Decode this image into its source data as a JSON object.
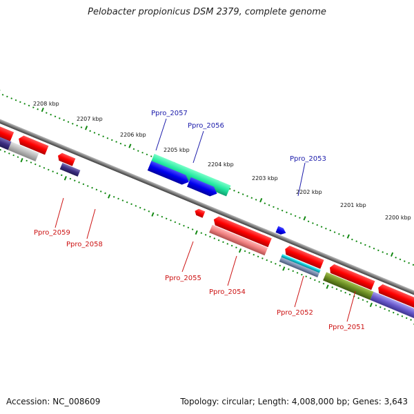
{
  "title": "Pelobacter propionicus DSM 2379, complete genome",
  "footer": {
    "accession": "Accession: NC_008609",
    "summary": "Topology: circular; Length: 4,008,000 bp; Genes: 3,643"
  },
  "colors": {
    "backbone": "#808080",
    "tick": "#118811",
    "forward_label": "#1a1aaa",
    "reverse_label": "#cc1111"
  },
  "scale_labels": [
    "2208 kbp",
    "2207 kbp",
    "2206 kbp",
    "2205 kbp",
    "2204 kbp",
    "2203 kbp",
    "2202 kbp",
    "2201 kbp",
    "2200 kbp"
  ],
  "gene_labels": [
    {
      "text": "Ppro_2057",
      "strand": "forward"
    },
    {
      "text": "Ppro_2056",
      "strand": "forward"
    },
    {
      "text": "Ppro_2053",
      "strand": "forward"
    },
    {
      "text": "Ppro_2059",
      "strand": "reverse"
    },
    {
      "text": "Ppro_2058",
      "strand": "reverse"
    },
    {
      "text": "Ppro_2055",
      "strand": "reverse"
    },
    {
      "text": "Ppro_2054",
      "strand": "reverse"
    },
    {
      "text": "Ppro_2052",
      "strand": "reverse"
    },
    {
      "text": "Ppro_2051",
      "strand": "reverse"
    }
  ]
}
